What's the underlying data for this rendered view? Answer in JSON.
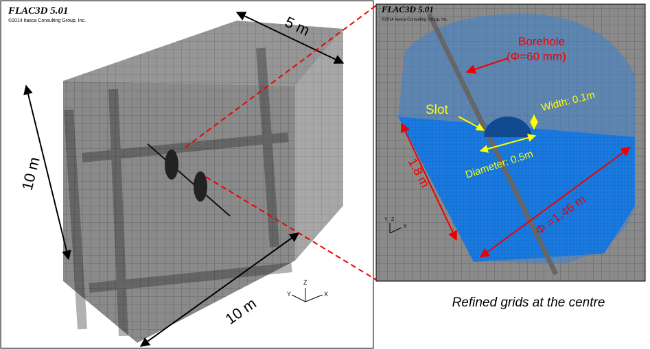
{
  "left_panel": {
    "software": "FLAC3D 5.01",
    "copyright": "©2014 Itasca Consulting Group, Inc.",
    "dimensions": {
      "depth": "5 m",
      "height": "10 m",
      "width": "10 m"
    },
    "axes": [
      "Y",
      "Z",
      "X"
    ]
  },
  "right_panel": {
    "software": "FLAC3D 5.01",
    "copyright": "©2014 Itasca Consulting Group, Inc.",
    "borehole": "Borehole",
    "borehole_diameter": "(Φ=60 mm)",
    "slot": "Slot",
    "slot_width": "Width: 0.1m",
    "slot_diameter": "Diameter: 0.5m",
    "length": "1.8 m",
    "cylinder_diameter": "Φ =1.46 m",
    "axes": [
      "Y",
      "Z",
      "X"
    ],
    "caption": "Refined grids at the centre"
  }
}
